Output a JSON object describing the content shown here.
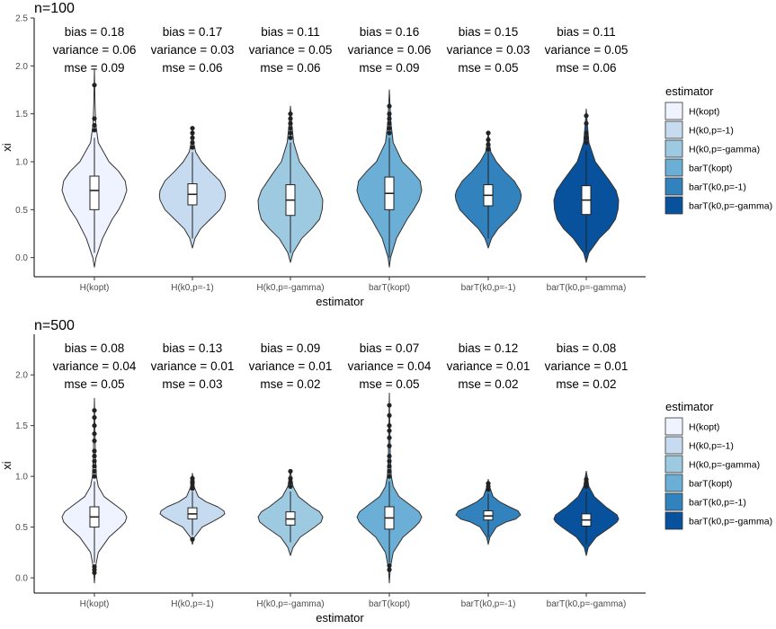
{
  "legend": {
    "title": "estimator",
    "items": [
      "H(kopt)",
      "H(k0,p=-1)",
      "H(k0,p=-gamma)",
      "barT(kopt)",
      "barT(k0,p=-1)",
      "barT(k0,p=-gamma)"
    ],
    "colors": [
      "#eff3ff",
      "#c6dbef",
      "#9ecae1",
      "#6baed6",
      "#3182bd",
      "#08519c"
    ]
  },
  "chart_data": [
    {
      "type": "violin",
      "title": "n=100",
      "xlabel": "estimator",
      "ylabel": "xi",
      "ylim": [
        -0.2,
        2.5
      ],
      "yticks": [
        0.0,
        0.5,
        1.0,
        1.5,
        2.0,
        2.5
      ],
      "ytick_labels": [
        "0.0",
        "0.5",
        "1.0",
        "1.5",
        "2.0",
        "2.5"
      ],
      "categories": [
        "H(kopt)",
        "H(k0,p=-1)",
        "H(k0,p=-gamma)",
        "barT(kopt)",
        "barT(k0,p=-1)",
        "barT(k0,p=-gamma)"
      ],
      "stat_labels": [
        [
          "bias = 0.18",
          "variance = 0.06",
          "mse = 0.09"
        ],
        [
          "bias = 0.17",
          "variance = 0.03",
          "mse = 0.06"
        ],
        [
          "bias = 0.11",
          "variance = 0.05",
          "mse = 0.06"
        ],
        [
          "bias = 0.16",
          "variance = 0.06",
          "mse = 0.09"
        ],
        [
          "bias = 0.15",
          "variance = 0.03",
          "mse = 0.05"
        ],
        [
          "bias = 0.11",
          "variance = 0.05",
          "mse = 0.06"
        ]
      ],
      "boxes": [
        {
          "min": 0.05,
          "q1": 0.5,
          "median": 0.7,
          "q3": 0.85,
          "max": 1.25
        },
        {
          "min": 0.2,
          "q1": 0.55,
          "median": 0.66,
          "q3": 0.77,
          "max": 1.1
        },
        {
          "min": 0.05,
          "q1": 0.44,
          "median": 0.6,
          "q3": 0.76,
          "max": 1.2
        },
        {
          "min": 0.0,
          "q1": 0.5,
          "median": 0.67,
          "q3": 0.84,
          "max": 1.25
        },
        {
          "min": 0.2,
          "q1": 0.54,
          "median": 0.65,
          "q3": 0.76,
          "max": 1.1
        },
        {
          "min": 0.05,
          "q1": 0.45,
          "median": 0.6,
          "q3": 0.75,
          "max": 1.12
        }
      ],
      "outliers": [
        [
          1.8,
          1.33,
          1.38,
          1.45
        ],
        [
          1.15,
          1.2,
          1.25,
          1.3,
          1.35
        ],
        [
          1.25,
          1.3,
          1.35,
          1.4,
          1.45,
          1.5
        ],
        [
          1.3,
          1.35,
          1.4,
          1.45,
          1.5,
          1.58
        ],
        [
          1.13,
          1.18,
          1.23,
          1.3
        ],
        [
          1.2,
          1.25,
          1.3,
          1.4,
          1.48
        ]
      ],
      "violins": [
        {
          "y": [
            -0.1,
            0.0,
            0.2,
            0.4,
            0.5,
            0.6,
            0.7,
            0.8,
            0.9,
            1.0,
            1.2,
            1.4,
            1.6,
            1.97
          ],
          "w": [
            0.0,
            0.05,
            0.25,
            0.55,
            0.75,
            0.9,
            1.0,
            0.95,
            0.75,
            0.45,
            0.12,
            0.04,
            0.02,
            0.0
          ]
        },
        {
          "y": [
            0.1,
            0.2,
            0.3,
            0.4,
            0.5,
            0.6,
            0.65,
            0.7,
            0.8,
            0.9,
            1.0,
            1.1,
            1.2,
            1.35
          ],
          "w": [
            0.0,
            0.08,
            0.25,
            0.55,
            0.85,
            1.0,
            1.02,
            1.0,
            0.85,
            0.55,
            0.28,
            0.1,
            0.04,
            0.0
          ]
        },
        {
          "y": [
            -0.05,
            0.05,
            0.2,
            0.3,
            0.4,
            0.5,
            0.6,
            0.7,
            0.8,
            0.9,
            1.0,
            1.2,
            1.4,
            1.58
          ],
          "w": [
            0.0,
            0.08,
            0.35,
            0.65,
            0.9,
            0.98,
            1.0,
            0.9,
            0.7,
            0.5,
            0.28,
            0.1,
            0.04,
            0.0
          ]
        },
        {
          "y": [
            -0.1,
            0.0,
            0.2,
            0.4,
            0.5,
            0.6,
            0.7,
            0.8,
            0.9,
            1.0,
            1.2,
            1.4,
            1.6,
            1.75
          ],
          "w": [
            0.0,
            0.04,
            0.22,
            0.55,
            0.75,
            0.92,
            1.0,
            0.95,
            0.7,
            0.4,
            0.12,
            0.05,
            0.02,
            0.0
          ]
        },
        {
          "y": [
            0.1,
            0.2,
            0.3,
            0.4,
            0.5,
            0.6,
            0.65,
            0.7,
            0.8,
            0.9,
            1.0,
            1.1,
            1.2,
            1.3
          ],
          "w": [
            0.0,
            0.1,
            0.3,
            0.6,
            0.88,
            1.0,
            1.02,
            0.98,
            0.8,
            0.5,
            0.25,
            0.08,
            0.03,
            0.0
          ]
        },
        {
          "y": [
            -0.05,
            0.05,
            0.2,
            0.3,
            0.4,
            0.5,
            0.6,
            0.7,
            0.8,
            0.9,
            1.0,
            1.2,
            1.4,
            1.55
          ],
          "w": [
            0.0,
            0.08,
            0.4,
            0.7,
            0.9,
            0.98,
            1.0,
            0.92,
            0.72,
            0.5,
            0.28,
            0.08,
            0.03,
            0.0
          ]
        }
      ]
    },
    {
      "type": "violin",
      "title": "n=500",
      "xlabel": "estimator",
      "ylabel": "xi",
      "ylim": [
        -0.15,
        2.4
      ],
      "yticks": [
        0.0,
        0.5,
        1.0,
        1.5,
        2.0
      ],
      "ytick_labels": [
        "0.0",
        "0.5",
        "1.0",
        "1.5",
        "2.0"
      ],
      "categories": [
        "H(kopt)",
        "H(k0,p=-1)",
        "H(k0,p=-gamma)",
        "barT(kopt)",
        "barT(k0,p=-1)",
        "barT(k0,p=-gamma)"
      ],
      "stat_labels": [
        [
          "bias = 0.08",
          "variance = 0.04",
          "mse = 0.05"
        ],
        [
          "bias = 0.13",
          "variance = 0.01",
          "mse = 0.03"
        ],
        [
          "bias = 0.09",
          "variance = 0.01",
          "mse = 0.02"
        ],
        [
          "bias = 0.07",
          "variance = 0.04",
          "mse = 0.05"
        ],
        [
          "bias = 0.12",
          "variance = 0.01",
          "mse = 0.02"
        ],
        [
          "bias = 0.08",
          "variance = 0.01",
          "mse = 0.02"
        ]
      ],
      "boxes": [
        {
          "min": 0.15,
          "q1": 0.5,
          "median": 0.6,
          "q3": 0.7,
          "max": 0.95
        },
        {
          "min": 0.42,
          "q1": 0.58,
          "median": 0.63,
          "q3": 0.69,
          "max": 0.85
        },
        {
          "min": 0.35,
          "q1": 0.52,
          "median": 0.58,
          "q3": 0.65,
          "max": 0.85
        },
        {
          "min": 0.15,
          "q1": 0.48,
          "median": 0.59,
          "q3": 0.7,
          "max": 0.95
        },
        {
          "min": 0.4,
          "q1": 0.57,
          "median": 0.61,
          "q3": 0.66,
          "max": 0.83
        },
        {
          "min": 0.33,
          "q1": 0.51,
          "median": 0.57,
          "q3": 0.63,
          "max": 0.85
        }
      ],
      "outliers": [
        [
          1.0,
          1.05,
          1.1,
          1.15,
          1.2,
          1.25,
          1.35,
          1.42,
          1.5,
          1.58,
          1.65,
          0.05,
          0.08,
          0.11
        ],
        [
          0.88,
          0.9,
          0.93,
          0.95,
          0.98,
          0.38
        ],
        [
          0.9,
          0.94,
          0.98,
          1.05
        ],
        [
          1.0,
          1.05,
          1.1,
          1.15,
          1.2,
          1.3,
          1.38,
          1.45,
          1.5,
          1.6,
          1.7,
          0.08,
          0.12
        ],
        [
          0.87,
          0.9,
          0.93
        ],
        [
          0.9,
          0.94,
          0.97
        ]
      ],
      "violins": [
        {
          "y": [
            -0.05,
            0.1,
            0.25,
            0.4,
            0.5,
            0.55,
            0.6,
            0.65,
            0.7,
            0.8,
            0.9,
            1.0,
            1.2,
            1.5,
            1.77
          ],
          "w": [
            0.0,
            0.03,
            0.12,
            0.45,
            0.8,
            0.95,
            1.0,
            0.92,
            0.72,
            0.3,
            0.12,
            0.06,
            0.03,
            0.015,
            0.0
          ]
        },
        {
          "y": [
            0.33,
            0.4,
            0.5,
            0.55,
            0.6,
            0.63,
            0.66,
            0.7,
            0.75,
            0.8,
            0.9,
            1.03
          ],
          "w": [
            0.0,
            0.06,
            0.3,
            0.6,
            0.88,
            1.0,
            0.97,
            0.78,
            0.42,
            0.18,
            0.05,
            0.0
          ]
        },
        {
          "y": [
            0.22,
            0.3,
            0.4,
            0.5,
            0.55,
            0.6,
            0.65,
            0.7,
            0.8,
            0.9,
            1.05
          ],
          "w": [
            0.0,
            0.08,
            0.3,
            0.75,
            0.95,
            1.0,
            0.9,
            0.65,
            0.25,
            0.08,
            0.0
          ]
        },
        {
          "y": [
            -0.05,
            0.1,
            0.25,
            0.4,
            0.5,
            0.55,
            0.6,
            0.65,
            0.7,
            0.8,
            0.9,
            1.0,
            1.2,
            1.5,
            1.82
          ],
          "w": [
            0.0,
            0.03,
            0.12,
            0.42,
            0.78,
            0.93,
            1.0,
            0.92,
            0.72,
            0.3,
            0.12,
            0.06,
            0.03,
            0.015,
            0.0
          ]
        },
        {
          "y": [
            0.33,
            0.4,
            0.5,
            0.55,
            0.58,
            0.62,
            0.66,
            0.7,
            0.75,
            0.8,
            0.9,
            0.97
          ],
          "w": [
            0.0,
            0.05,
            0.25,
            0.55,
            0.85,
            1.0,
            0.92,
            0.65,
            0.35,
            0.15,
            0.04,
            0.0
          ]
        },
        {
          "y": [
            0.22,
            0.3,
            0.4,
            0.5,
            0.55,
            0.58,
            0.62,
            0.7,
            0.8,
            0.9,
            1.05
          ],
          "w": [
            0.0,
            0.06,
            0.3,
            0.75,
            0.95,
            1.0,
            0.95,
            0.6,
            0.25,
            0.08,
            0.0
          ]
        }
      ]
    }
  ]
}
